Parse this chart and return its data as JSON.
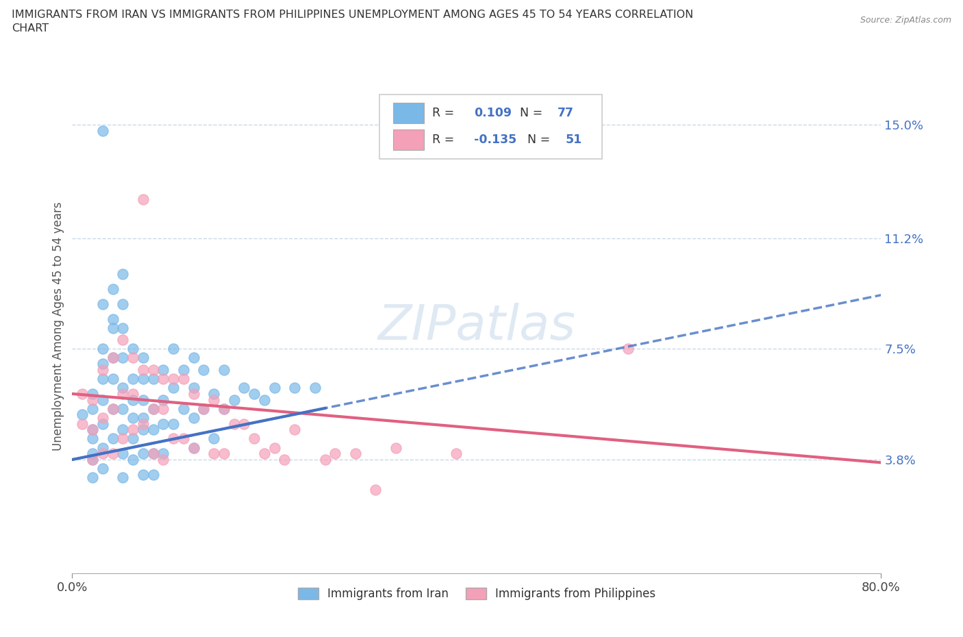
{
  "title_line1": "IMMIGRANTS FROM IRAN VS IMMIGRANTS FROM PHILIPPINES UNEMPLOYMENT AMONG AGES 45 TO 54 YEARS CORRELATION",
  "title_line2": "CHART",
  "source_text": "Source: ZipAtlas.com",
  "ylabel": "Unemployment Among Ages 45 to 54 years",
  "xlim": [
    0.0,
    0.8
  ],
  "ylim": [
    0.0,
    0.165
  ],
  "xtick_positions": [
    0.0,
    0.8
  ],
  "xtick_labels": [
    "0.0%",
    "80.0%"
  ],
  "ytick_right_vals": [
    0.038,
    0.075,
    0.112,
    0.15
  ],
  "ytick_right_labels": [
    "3.8%",
    "7.5%",
    "11.2%",
    "15.0%"
  ],
  "iran_color": "#7ab8e8",
  "iran_line_color": "#4472c4",
  "philippines_color": "#f4a0b8",
  "philippines_line_color": "#e06080",
  "watermark_text": "ZIPatlas",
  "grid_color": "#c8d8ea",
  "iran_R": 0.109,
  "iran_N": 77,
  "philippines_R": -0.135,
  "philippines_N": 51,
  "iran_scatter_x": [
    0.01,
    0.02,
    0.02,
    0.02,
    0.02,
    0.02,
    0.02,
    0.02,
    0.03,
    0.03,
    0.03,
    0.03,
    0.03,
    0.03,
    0.03,
    0.03,
    0.03,
    0.04,
    0.04,
    0.04,
    0.04,
    0.04,
    0.04,
    0.04,
    0.05,
    0.05,
    0.05,
    0.05,
    0.05,
    0.05,
    0.05,
    0.05,
    0.05,
    0.06,
    0.06,
    0.06,
    0.06,
    0.06,
    0.06,
    0.07,
    0.07,
    0.07,
    0.07,
    0.07,
    0.07,
    0.07,
    0.08,
    0.08,
    0.08,
    0.08,
    0.08,
    0.09,
    0.09,
    0.09,
    0.09,
    0.1,
    0.1,
    0.1,
    0.11,
    0.11,
    0.12,
    0.12,
    0.12,
    0.12,
    0.13,
    0.13,
    0.14,
    0.14,
    0.15,
    0.15,
    0.16,
    0.17,
    0.18,
    0.19,
    0.2,
    0.22,
    0.24
  ],
  "iran_scatter_y": [
    0.053,
    0.06,
    0.055,
    0.048,
    0.045,
    0.04,
    0.038,
    0.032,
    0.148,
    0.09,
    0.075,
    0.07,
    0.065,
    0.058,
    0.05,
    0.042,
    0.035,
    0.095,
    0.085,
    0.082,
    0.072,
    0.065,
    0.055,
    0.045,
    0.1,
    0.09,
    0.082,
    0.072,
    0.062,
    0.055,
    0.048,
    0.04,
    0.032,
    0.075,
    0.065,
    0.058,
    0.052,
    0.045,
    0.038,
    0.072,
    0.065,
    0.058,
    0.052,
    0.048,
    0.04,
    0.033,
    0.065,
    0.055,
    0.048,
    0.04,
    0.033,
    0.068,
    0.058,
    0.05,
    0.04,
    0.075,
    0.062,
    0.05,
    0.068,
    0.055,
    0.072,
    0.062,
    0.052,
    0.042,
    0.068,
    0.055,
    0.06,
    0.045,
    0.068,
    0.055,
    0.058,
    0.062,
    0.06,
    0.058,
    0.062,
    0.062,
    0.062
  ],
  "phil_scatter_x": [
    0.01,
    0.01,
    0.02,
    0.02,
    0.02,
    0.03,
    0.03,
    0.03,
    0.04,
    0.04,
    0.04,
    0.05,
    0.05,
    0.05,
    0.06,
    0.06,
    0.06,
    0.07,
    0.07,
    0.07,
    0.08,
    0.08,
    0.08,
    0.09,
    0.09,
    0.09,
    0.1,
    0.1,
    0.11,
    0.11,
    0.12,
    0.12,
    0.13,
    0.14,
    0.14,
    0.15,
    0.15,
    0.16,
    0.17,
    0.18,
    0.19,
    0.2,
    0.21,
    0.22,
    0.25,
    0.26,
    0.28,
    0.3,
    0.32,
    0.55,
    0.38
  ],
  "phil_scatter_y": [
    0.06,
    0.05,
    0.058,
    0.048,
    0.038,
    0.068,
    0.052,
    0.04,
    0.072,
    0.055,
    0.04,
    0.078,
    0.06,
    0.045,
    0.072,
    0.06,
    0.048,
    0.125,
    0.068,
    0.05,
    0.068,
    0.055,
    0.04,
    0.065,
    0.055,
    0.038,
    0.065,
    0.045,
    0.065,
    0.045,
    0.06,
    0.042,
    0.055,
    0.058,
    0.04,
    0.055,
    0.04,
    0.05,
    0.05,
    0.045,
    0.04,
    0.042,
    0.038,
    0.048,
    0.038,
    0.04,
    0.04,
    0.028,
    0.042,
    0.075,
    0.04
  ],
  "iran_trend_x": [
    0.0,
    0.8
  ],
  "iran_trend_y_start": 0.038,
  "iran_trend_y_end": 0.093,
  "phil_trend_x": [
    0.0,
    0.8
  ],
  "phil_trend_y_start": 0.06,
  "phil_trend_y_end": 0.037
}
